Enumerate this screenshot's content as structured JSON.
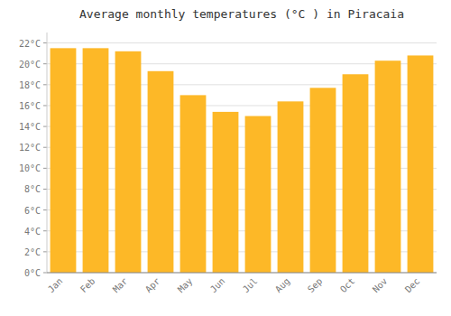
{
  "chart_data": {
    "type": "bar",
    "title": "Average monthly temperatures (°C ) in Piracaia",
    "categories": [
      "Jan",
      "Feb",
      "Mar",
      "Apr",
      "May",
      "Jun",
      "Jul",
      "Aug",
      "Sep",
      "Oct",
      "Nov",
      "Dec"
    ],
    "values": [
      21.5,
      21.5,
      21.2,
      19.3,
      17.0,
      15.4,
      15.0,
      16.4,
      17.7,
      19.0,
      20.3,
      20.8
    ],
    "color": "#FDB827",
    "ylim": [
      0,
      23
    ],
    "yticks": [
      {
        "value": 0,
        "label": "0°C"
      },
      {
        "value": 2,
        "label": "2°C"
      },
      {
        "value": 4,
        "label": "4°C"
      },
      {
        "value": 6,
        "label": "6°C"
      },
      {
        "value": 8,
        "label": "8°C"
      },
      {
        "value": 10,
        "label": "10°C"
      },
      {
        "value": 12,
        "label": "12°C"
      },
      {
        "value": 14,
        "label": "14°C"
      },
      {
        "value": 16,
        "label": "16°C"
      },
      {
        "value": 18,
        "label": "18°C"
      },
      {
        "value": 20,
        "label": "20°C"
      },
      {
        "value": 22,
        "label": "22°C"
      }
    ],
    "grid": true
  }
}
